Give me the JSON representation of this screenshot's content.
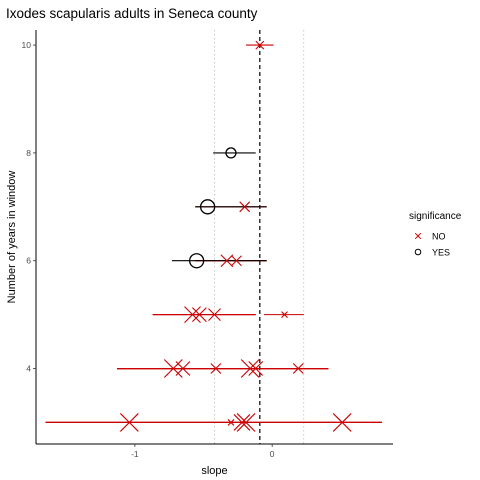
{
  "chart_data": {
    "type": "scatter",
    "title": "Ixodes scapularis adults in Seneca county",
    "xlabel": "slope",
    "ylabel": "Number of years in window",
    "xlim": [
      -1.72,
      0.88
    ],
    "ylim": [
      2.6,
      10.28
    ],
    "x_ticks": [
      -1,
      0
    ],
    "x_tick_labels": [
      "-1",
      "0"
    ],
    "y_ticks": [
      4,
      6,
      8,
      10
    ],
    "y_tick_labels": [
      "4",
      "6",
      "8",
      "10"
    ],
    "grid": false,
    "reference_lines": [
      {
        "x": -0.09,
        "style": "dashed",
        "color": "#000000"
      },
      {
        "x": -0.42,
        "style": "dotted",
        "color": "#bbbbbb"
      },
      {
        "x": 0.23,
        "style": "dotted",
        "color": "#bbbbbb"
      }
    ],
    "legend": {
      "title": "significance",
      "position": "right",
      "entries": [
        {
          "label": "NO",
          "marker": "x",
          "color": "#cc0000"
        },
        {
          "label": "YES",
          "marker": "circle",
          "color": "#000000"
        }
      ]
    },
    "series": [
      {
        "name": "NO",
        "color": "#cc0000",
        "marker": "x",
        "points": [
          {
            "y": 10,
            "x": -0.09,
            "xmin": -0.19,
            "xmax": 0.01,
            "size": 4
          },
          {
            "y": 7,
            "x": -0.2,
            "xmin": -0.56,
            "xmax": -0.04,
            "size": 5
          },
          {
            "y": 6,
            "x": -0.33,
            "xmin": -0.56,
            "xmax": -0.04,
            "size": 6
          },
          {
            "y": 6,
            "x": -0.26,
            "xmin": -0.56,
            "xmax": -0.04,
            "size": 5
          },
          {
            "y": 5,
            "x": -0.58,
            "xmin": -0.87,
            "xmax": -0.12,
            "size": 8
          },
          {
            "y": 5,
            "x": -0.53,
            "xmin": -0.87,
            "xmax": -0.12,
            "size": 7
          },
          {
            "y": 5,
            "x": -0.42,
            "xmin": -0.87,
            "xmax": -0.12,
            "size": 6
          },
          {
            "y": 5,
            "x": 0.09,
            "xmin": -0.06,
            "xmax": 0.23,
            "size": 3
          },
          {
            "y": 4,
            "x": -0.72,
            "xmin": -1.13,
            "xmax": 0.41,
            "size": 9
          },
          {
            "y": 4,
            "x": -0.65,
            "xmin": -1.13,
            "xmax": 0.41,
            "size": 7
          },
          {
            "y": 4,
            "x": -0.41,
            "xmin": -1.13,
            "xmax": 0.41,
            "size": 5
          },
          {
            "y": 4,
            "x": -0.16,
            "xmin": -1.13,
            "xmax": 0.41,
            "size": 9
          },
          {
            "y": 4,
            "x": -0.12,
            "xmin": -1.13,
            "xmax": 0.41,
            "size": 7
          },
          {
            "y": 4,
            "x": 0.19,
            "xmin": -1.13,
            "xmax": 0.41,
            "size": 5
          },
          {
            "y": 3,
            "x": -1.04,
            "xmin": -1.65,
            "xmax": 0.8,
            "size": 9
          },
          {
            "y": 3,
            "x": -0.22,
            "xmin": -1.65,
            "xmax": 0.8,
            "size": 8
          },
          {
            "y": 3,
            "x": -0.19,
            "xmin": -1.65,
            "xmax": 0.8,
            "size": 9
          },
          {
            "y": 3,
            "x": 0.51,
            "xmin": -1.65,
            "xmax": 0.8,
            "size": 9
          },
          {
            "y": 3,
            "x": -0.3,
            "xmin": -1.65,
            "xmax": 0.8,
            "size": 3
          }
        ]
      },
      {
        "name": "YES",
        "color": "#000000",
        "marker": "circle",
        "points": [
          {
            "y": 8,
            "x": -0.3,
            "xmin": -0.43,
            "xmax": -0.12,
            "size": 5
          },
          {
            "y": 7,
            "x": -0.47,
            "xmin": -0.56,
            "xmax": -0.04,
            "size": 7
          },
          {
            "y": 6,
            "x": -0.55,
            "xmin": -0.73,
            "xmax": -0.04,
            "size": 7
          }
        ]
      }
    ]
  }
}
